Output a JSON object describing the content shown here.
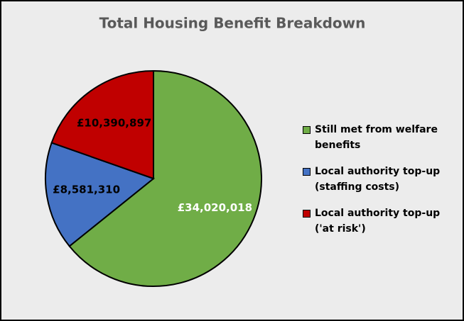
{
  "chart_data": {
    "type": "pie",
    "title": "Total Housing Benefit Breakdown",
    "categories": [
      "Still met from welfare benefits",
      "Local authority top-up (staffing costs)",
      "Local authority top-up ('at risk')"
    ],
    "values": [
      34020018,
      8581310,
      10390897
    ],
    "value_labels": [
      "£34,020,018",
      "£8,581,310",
      "£10,390,897"
    ],
    "colors": [
      "#70ad47",
      "#4472c4",
      "#c00000"
    ],
    "label_colors": [
      "#ffffff",
      "#000000",
      "#000000"
    ],
    "legend": "right"
  }
}
